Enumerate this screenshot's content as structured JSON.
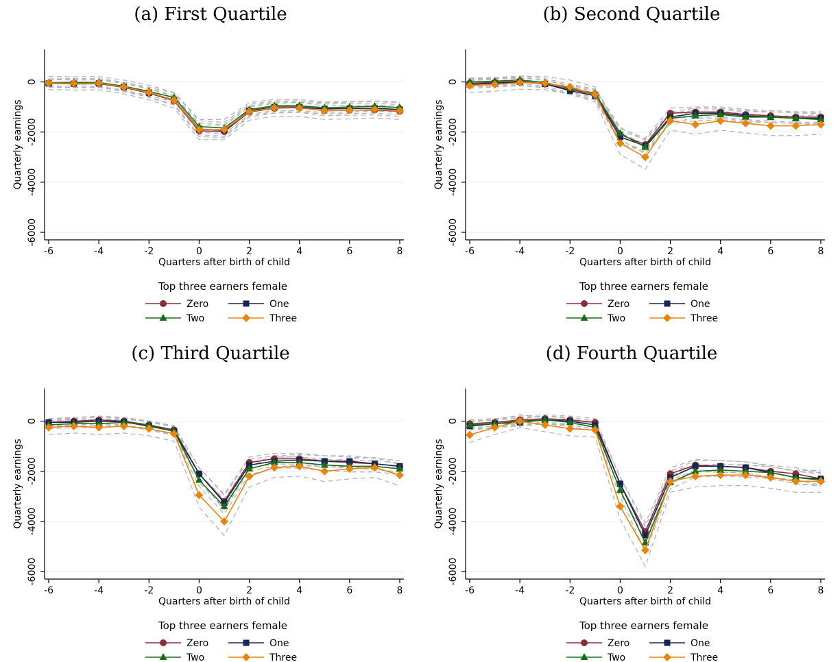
{
  "legend": {
    "title": "Top three earners female",
    "entries": [
      {
        "key": "zero",
        "label": "Zero"
      },
      {
        "key": "one",
        "label": "One"
      },
      {
        "key": "two",
        "label": "Two"
      },
      {
        "key": "three",
        "label": "Three"
      }
    ]
  },
  "colors": {
    "zero": "#8c2e3a",
    "one": "#1a2650",
    "two": "#1a6b1a",
    "three": "#e8850e",
    "ci": "#b5b5b5",
    "grid": "#ececec"
  },
  "chart_data": [
    {
      "type": "line",
      "title": "(a) First Quartile",
      "xlabel": "Quarters after birth of child",
      "ylabel": "Quarterly earnings",
      "x": [
        -6,
        -5,
        -4,
        -3,
        -2,
        -1,
        0,
        1,
        2,
        3,
        4,
        5,
        6,
        7,
        8
      ],
      "xticks": [
        -6,
        -4,
        -2,
        0,
        2,
        4,
        6,
        8
      ],
      "yticks": [
        0,
        -2000,
        -4000,
        -6000
      ],
      "ylim": [
        -6300,
        1300
      ],
      "grid": true,
      "legend_position": "bottom",
      "series": [
        {
          "name": "Zero",
          "values": [
            -50,
            -80,
            -70,
            -220,
            -450,
            -750,
            -1950,
            -1980,
            -1200,
            -1050,
            -1020,
            -1150,
            -1130,
            -1120,
            -1170
          ]
        },
        {
          "name": "One",
          "values": [
            -60,
            -70,
            -60,
            -200,
            -430,
            -720,
            -1880,
            -1930,
            -1150,
            -1000,
            -1000,
            -1080,
            -1060,
            -1050,
            -1100
          ]
        },
        {
          "name": "Two",
          "values": [
            -30,
            -20,
            -20,
            -170,
            -380,
            -620,
            -1780,
            -1840,
            -1100,
            -950,
            -950,
            -1030,
            -1000,
            -970,
            -1020
          ]
        },
        {
          "name": "Three",
          "values": [
            -40,
            -60,
            -50,
            -200,
            -420,
            -730,
            -1900,
            -1900,
            -1180,
            -1030,
            -1040,
            -1150,
            -1130,
            -1100,
            -1150
          ]
        }
      ]
    },
    {
      "type": "line",
      "title": "(b) Second Quartile",
      "xlabel": "Quarters after birth of child",
      "ylabel": "Quarterly earnings",
      "x": [
        -6,
        -5,
        -4,
        -3,
        -2,
        -1,
        0,
        1,
        2,
        3,
        4,
        5,
        6,
        7,
        8
      ],
      "xticks": [
        -6,
        -4,
        -2,
        0,
        2,
        4,
        6,
        8
      ],
      "yticks": [
        0,
        -2000,
        -4000,
        -6000
      ],
      "ylim": [
        -6300,
        1300
      ],
      "grid": true,
      "legend_position": "bottom",
      "series": [
        {
          "name": "Zero",
          "values": [
            -50,
            -20,
            30,
            -80,
            -300,
            -500,
            -2100,
            -2500,
            -1250,
            -1200,
            -1200,
            -1300,
            -1350,
            -1400,
            -1400
          ]
        },
        {
          "name": "One",
          "values": [
            -100,
            -50,
            0,
            -80,
            -350,
            -550,
            -2200,
            -2550,
            -1400,
            -1250,
            -1250,
            -1350,
            -1400,
            -1450,
            -1450
          ]
        },
        {
          "name": "Two",
          "values": [
            0,
            30,
            80,
            -20,
            -250,
            -450,
            -2050,
            -2600,
            -1450,
            -1350,
            -1300,
            -1400,
            -1400,
            -1450,
            -1500
          ]
        },
        {
          "name": "Three",
          "values": [
            -150,
            -100,
            -30,
            -50,
            -200,
            -500,
            -2450,
            -3000,
            -1550,
            -1700,
            -1550,
            -1650,
            -1750,
            -1750,
            -1700
          ]
        }
      ]
    },
    {
      "type": "line",
      "title": "(c) Third Quartile",
      "xlabel": "Quarters after birth of child",
      "ylabel": "Quarterly earnings",
      "x": [
        -6,
        -5,
        -4,
        -3,
        -2,
        -1,
        0,
        1,
        2,
        3,
        4,
        5,
        6,
        7,
        8
      ],
      "xticks": [
        -6,
        -4,
        -2,
        0,
        2,
        4,
        6,
        8
      ],
      "yticks": [
        0,
        -2000,
        -4000,
        -6000
      ],
      "ylim": [
        -6300,
        1300
      ],
      "grid": true,
      "legend_position": "bottom",
      "series": [
        {
          "name": "Zero",
          "values": [
            -50,
            0,
            50,
            0,
            -150,
            -350,
            -2100,
            -3200,
            -1650,
            -1500,
            -1500,
            -1600,
            -1650,
            -1700,
            -1800
          ]
        },
        {
          "name": "One",
          "values": [
            -50,
            -50,
            0,
            -30,
            -200,
            -400,
            -2100,
            -3250,
            -1750,
            -1600,
            -1550,
            -1600,
            -1600,
            -1700,
            -1800
          ]
        },
        {
          "name": "Two",
          "values": [
            -150,
            -100,
            -100,
            -50,
            -150,
            -400,
            -2350,
            -3400,
            -1900,
            -1650,
            -1650,
            -1750,
            -1800,
            -1800,
            -1900
          ]
        },
        {
          "name": "Three",
          "values": [
            -250,
            -200,
            -250,
            -200,
            -300,
            -500,
            -2950,
            -4000,
            -2200,
            -1850,
            -1800,
            -2000,
            -1900,
            -1850,
            -2150
          ]
        }
      ]
    },
    {
      "type": "line",
      "title": "(d) Fourth Quartile",
      "xlabel": "Quarters after birth of child",
      "ylabel": "Quarterly earnings",
      "x": [
        -6,
        -5,
        -4,
        -3,
        -2,
        -1,
        0,
        1,
        2,
        3,
        4,
        5,
        6,
        7,
        8
      ],
      "xticks": [
        -6,
        -4,
        -2,
        0,
        2,
        4,
        6,
        8
      ],
      "yticks": [
        0,
        -2000,
        -4000,
        -6000
      ],
      "ylim": [
        -6300,
        1300
      ],
      "grid": true,
      "legend_position": "bottom",
      "series": [
        {
          "name": "Zero",
          "values": [
            -100,
            -50,
            50,
            100,
            50,
            -50,
            -2500,
            -4400,
            -2100,
            -1750,
            -1800,
            -1850,
            -2000,
            -2100,
            -2300
          ]
        },
        {
          "name": "One",
          "values": [
            -200,
            -100,
            -50,
            50,
            0,
            -150,
            -2500,
            -4550,
            -2250,
            -1800,
            -1800,
            -1850,
            -2050,
            -2250,
            -2300
          ]
        },
        {
          "name": "Two",
          "values": [
            -150,
            -100,
            0,
            50,
            -50,
            -250,
            -2750,
            -4850,
            -2450,
            -2000,
            -1950,
            -2000,
            -2050,
            -2250,
            -2350
          ]
        },
        {
          "name": "Three",
          "values": [
            -550,
            -250,
            0,
            -150,
            -300,
            -350,
            -3400,
            -5150,
            -2400,
            -2200,
            -2150,
            -2150,
            -2250,
            -2400,
            -2400
          ]
        }
      ]
    }
  ]
}
